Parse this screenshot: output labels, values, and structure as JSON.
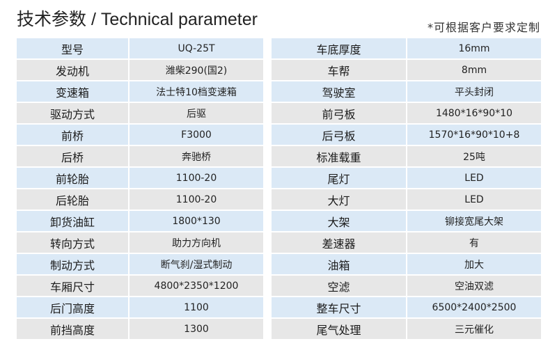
{
  "header": {
    "title_cn": "技术参数",
    "separator": " / ",
    "title_en": "Technical parameter",
    "note": "*可根据客户要求定制"
  },
  "colors": {
    "row_blue": "#dbe9f6",
    "row_gray": "#e7e7e7"
  },
  "left": [
    {
      "label": "型号",
      "value": "UQ-25T"
    },
    {
      "label": "发动机",
      "value": "潍柴290(国2)"
    },
    {
      "label": "变速箱",
      "value": "法士特10档变速箱"
    },
    {
      "label": "驱动方式",
      "value": "后驱"
    },
    {
      "label": "前桥",
      "value": "F3000"
    },
    {
      "label": "后桥",
      "value": "奔驰桥"
    },
    {
      "label": "前轮胎",
      "value": "1100-20"
    },
    {
      "label": "后轮胎",
      "value": "1100-20"
    },
    {
      "label": "卸货油缸",
      "value": "1800*130"
    },
    {
      "label": "转向方式",
      "value": "助力方向机"
    },
    {
      "label": "制动方式",
      "value": "断气刹/湿式制动"
    },
    {
      "label": "车厢尺寸",
      "value": "4800*2350*1200"
    },
    {
      "label": "后门高度",
      "value": "1100"
    },
    {
      "label": "前挡高度",
      "value": "1300"
    }
  ],
  "right": [
    {
      "label": "车底厚度",
      "value": "16mm"
    },
    {
      "label": "车帮",
      "value": "8mm"
    },
    {
      "label": "驾驶室",
      "value": "平头封闭"
    },
    {
      "label": "前弓板",
      "value": "1480*16*90*10"
    },
    {
      "label": "后弓板",
      "value": "1570*16*90*10+8"
    },
    {
      "label": "标准载重",
      "value": "25吨"
    },
    {
      "label": "尾灯",
      "value": "LED"
    },
    {
      "label": "大灯",
      "value": "LED"
    },
    {
      "label": "大架",
      "value": "铆接宽尾大架"
    },
    {
      "label": "差速器",
      "value": "有"
    },
    {
      "label": "油箱",
      "value": "加大"
    },
    {
      "label": "空滤",
      "value": "空油双滤"
    },
    {
      "label": "整车尺寸",
      "value": "6500*2400*2500"
    },
    {
      "label": "尾气处理",
      "value": "三元催化"
    }
  ]
}
